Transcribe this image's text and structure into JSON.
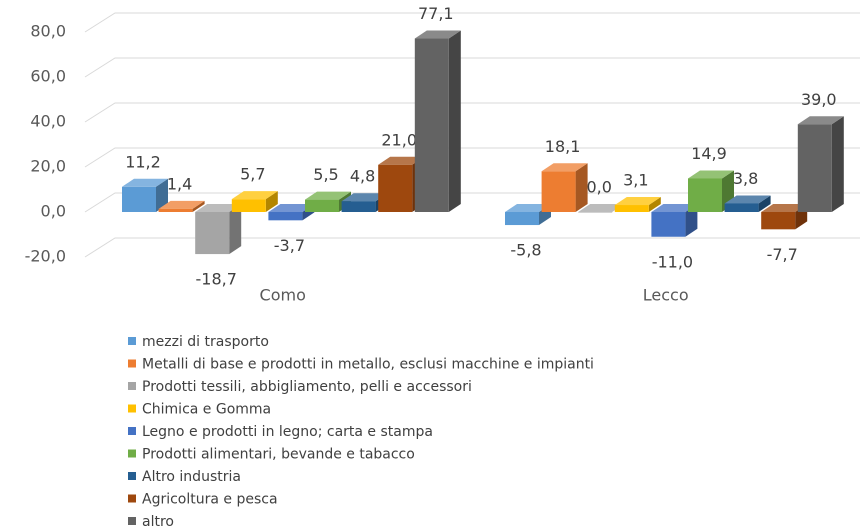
{
  "chart_data": {
    "type": "bar3d",
    "categories": [
      "Como",
      "Lecco"
    ],
    "ylim": [
      -20,
      80
    ],
    "yticks": [
      {
        "value": -20,
        "label": "-20,0"
      },
      {
        "value": 0,
        "label": "0,0"
      },
      {
        "value": 20,
        "label": "20,0"
      },
      {
        "value": 40,
        "label": "40,0"
      },
      {
        "value": 60,
        "label": "60,0"
      },
      {
        "value": 80,
        "label": "80,0"
      }
    ],
    "grid": true,
    "legend": "bottom",
    "series": [
      {
        "name": "mezzi di trasporto",
        "color": "#5b9bd5",
        "values": [
          11.2,
          -5.8
        ],
        "value_labels": [
          "11,2",
          "-5,8"
        ]
      },
      {
        "name": "Metalli di base e prodotti in metallo, esclusi macchine e impianti",
        "color": "#ed7d31",
        "values": [
          1.4,
          18.1
        ],
        "value_labels": [
          "1,4",
          "18,1"
        ]
      },
      {
        "name": "Prodotti tessili, abbigliamento, pelli e accessori",
        "color": "#a5a5a5",
        "values": [
          -18.7,
          0.0
        ],
        "value_labels": [
          "-18,7",
          "0,0"
        ]
      },
      {
        "name": "Chimica e Gomma",
        "color": "#ffc000",
        "values": [
          5.7,
          3.1
        ],
        "value_labels": [
          "5,7",
          "3,1"
        ]
      },
      {
        "name": "Legno e prodotti in legno; carta e stampa",
        "color": "#4472c4",
        "values": [
          -3.7,
          -11.0
        ],
        "value_labels": [
          "-3,7",
          "-11,0"
        ]
      },
      {
        "name": "Prodotti alimentari, bevande e tabacco",
        "color": "#70ad47",
        "values": [
          5.5,
          14.9
        ],
        "value_labels": [
          "5,5",
          "14,9"
        ]
      },
      {
        "name": "Altro industria",
        "color": "#255e91",
        "values": [
          4.8,
          3.8
        ],
        "value_labels": [
          "4,8",
          "3,8"
        ]
      },
      {
        "name": "Agricoltura e pesca",
        "color": "#9e480e",
        "values": [
          21.0,
          -7.7
        ],
        "value_labels": [
          "21,0",
          "-7,7"
        ]
      },
      {
        "name": "altro",
        "color": "#636363",
        "values": [
          77.1,
          39.0
        ],
        "value_labels": [
          "77,1",
          "39,0"
        ]
      }
    ]
  }
}
